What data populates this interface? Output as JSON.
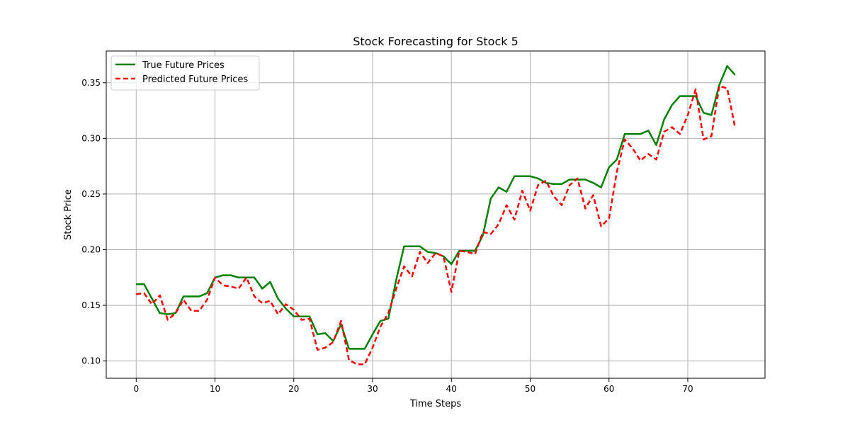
{
  "chart_data": {
    "type": "line",
    "title": "Stock Forecasting for Stock 5",
    "xlabel": "Time Steps",
    "ylabel": "Stock Price",
    "xlim": [
      -3.8,
      79.8
    ],
    "ylim": [
      0.0845,
      0.3785
    ],
    "xticks": [
      0,
      10,
      20,
      30,
      40,
      50,
      60,
      70
    ],
    "xtick_labels": [
      "0",
      "10",
      "20",
      "30",
      "40",
      "50",
      "60",
      "70"
    ],
    "yticks": [
      0.1,
      0.15,
      0.2,
      0.25,
      0.3,
      0.35
    ],
    "ytick_labels": [
      "0.10",
      "0.15",
      "0.20",
      "0.25",
      "0.30",
      "0.35"
    ],
    "grid": true,
    "legend_position": "upper-left",
    "series": [
      {
        "name": "True Future Prices",
        "color": "#008000",
        "style": "solid",
        "values": [
          0.169,
          0.169,
          0.156,
          0.143,
          0.142,
          0.143,
          0.158,
          0.158,
          0.158,
          0.161,
          0.175,
          0.177,
          0.177,
          0.175,
          0.175,
          0.175,
          0.165,
          0.171,
          0.156,
          0.147,
          0.14,
          0.14,
          0.14,
          0.124,
          0.125,
          0.118,
          0.133,
          0.111,
          0.111,
          0.111,
          0.124,
          0.136,
          0.138,
          0.173,
          0.203,
          0.203,
          0.203,
          0.198,
          0.197,
          0.194,
          0.187,
          0.199,
          0.199,
          0.199,
          0.213,
          0.246,
          0.256,
          0.252,
          0.266,
          0.266,
          0.266,
          0.264,
          0.26,
          0.259,
          0.259,
          0.263,
          0.263,
          0.263,
          0.26,
          0.256,
          0.274,
          0.281,
          0.304,
          0.304,
          0.304,
          0.307,
          0.294,
          0.317,
          0.33,
          0.338,
          0.338,
          0.338,
          0.323,
          0.321,
          0.348,
          0.365,
          0.357
        ]
      },
      {
        "name": "Predicted Future Prices",
        "color": "#ff0000",
        "style": "dashed",
        "values": [
          0.16,
          0.161,
          0.151,
          0.159,
          0.137,
          0.143,
          0.155,
          0.145,
          0.145,
          0.155,
          0.175,
          0.168,
          0.167,
          0.165,
          0.175,
          0.158,
          0.152,
          0.154,
          0.142,
          0.151,
          0.146,
          0.137,
          0.138,
          0.11,
          0.112,
          0.117,
          0.136,
          0.101,
          0.097,
          0.097,
          0.112,
          0.131,
          0.143,
          0.165,
          0.185,
          0.176,
          0.198,
          0.188,
          0.197,
          0.194,
          0.162,
          0.199,
          0.198,
          0.196,
          0.216,
          0.214,
          0.223,
          0.24,
          0.227,
          0.253,
          0.235,
          0.258,
          0.262,
          0.248,
          0.24,
          0.258,
          0.264,
          0.237,
          0.249,
          0.221,
          0.228,
          0.27,
          0.299,
          0.291,
          0.28,
          0.286,
          0.281,
          0.306,
          0.31,
          0.304,
          0.321,
          0.344,
          0.299,
          0.302,
          0.347,
          0.345,
          0.31
        ]
      }
    ]
  }
}
